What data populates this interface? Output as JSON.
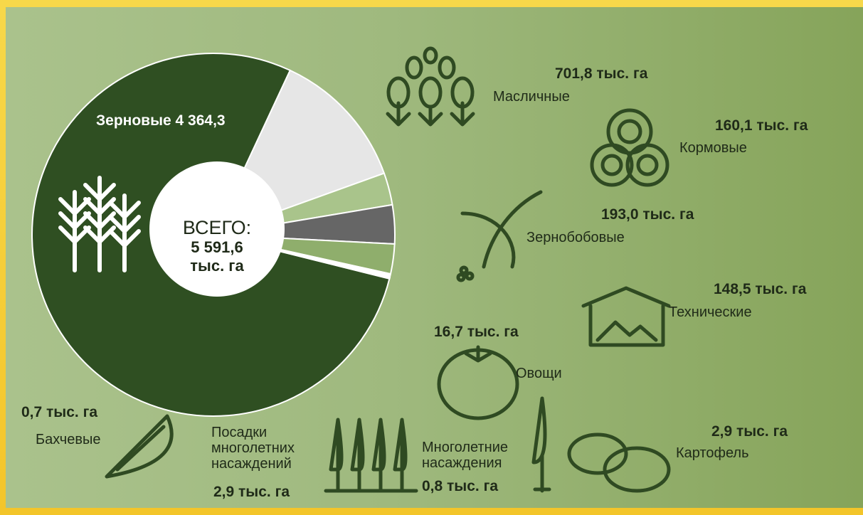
{
  "chart_data": {
    "type": "pie",
    "categories": [
      "Зерновые",
      "Масличные",
      "Кормовые",
      "Зернобобовые",
      "Технические",
      "Овощи",
      "Картофель",
      "Многолетние насаждения",
      "Посадки многолетних насаждений",
      "Бахчевые"
    ],
    "values": [
      4364.3,
      701.8,
      160.1,
      193.0,
      148.5,
      16.7,
      2.9,
      0.8,
      2.9,
      0.7
    ],
    "value_labels": [
      "4 364,3",
      "701,8 тыс. га",
      "160,1 тыс. га",
      "193,0 тыс. га",
      "148,5 тыс. га",
      "16,7 тыс. га",
      "2,9 тыс. га",
      "0,8 тыс. га",
      "2,9 тыс. га",
      "0,7 тыс. га"
    ],
    "colors": [
      "#2f4f22",
      "#e6e6e6",
      "#a9c48b",
      "#666666",
      "#8fae6c",
      "#ffffff",
      "#cfdcbf",
      "#ffffff",
      "#d6e3c4",
      "#ffffff"
    ],
    "total": {
      "label": "ВСЕГО:",
      "value": 5591.6,
      "value_label": "5 591,6",
      "unit": "тыс. га"
    }
  }
}
